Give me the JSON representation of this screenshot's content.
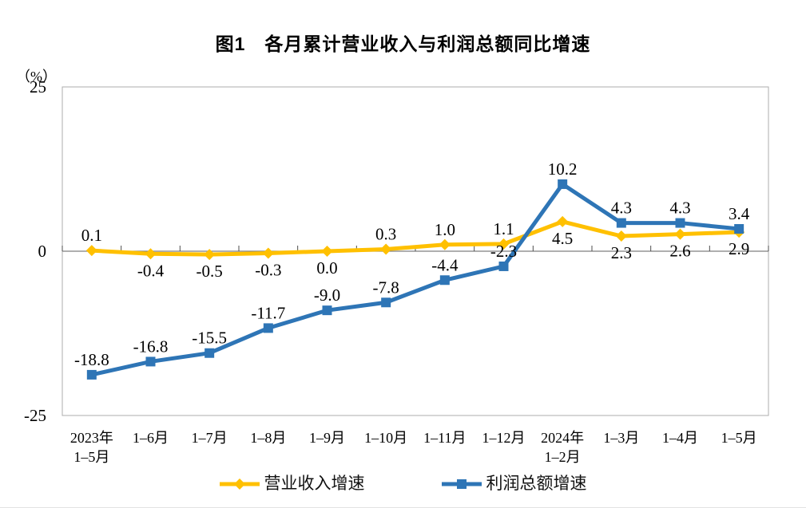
{
  "chart_data": {
    "type": "line",
    "title": "图1　各月累计营业收入与利润总额同比增速",
    "unit_label": "（%）",
    "categories": [
      "2023年\n1–5月",
      "1–6月",
      "1–7月",
      "1–8月",
      "1–9月",
      "1–10月",
      "1–11月",
      "1–12月",
      "2024年\n1–2月",
      "1–3月",
      "1–4月",
      "1–5月"
    ],
    "series": [
      {
        "key": "revenue",
        "name": "营业收入增速",
        "color": "#FFC000",
        "marker": "diamond",
        "values": [
          0.1,
          -0.4,
          -0.5,
          -0.3,
          0.0,
          0.3,
          1.0,
          1.1,
          4.5,
          2.3,
          2.6,
          2.9
        ],
        "label_side": [
          "above",
          "below",
          "below",
          "below",
          "below",
          "above",
          "above",
          "above",
          "below",
          "below",
          "below",
          "below"
        ]
      },
      {
        "key": "profit",
        "name": "利润总额增速",
        "color": "#2E75B6",
        "marker": "square",
        "values": [
          -18.8,
          -16.8,
          -15.5,
          -11.7,
          -9.0,
          -7.8,
          -4.4,
          -2.3,
          10.2,
          4.3,
          4.3,
          3.4
        ],
        "label_side": [
          "above",
          "above",
          "above",
          "above",
          "above",
          "above",
          "above",
          "above",
          "above",
          "above",
          "above",
          "above"
        ]
      }
    ],
    "ylim": [
      -25,
      25
    ],
    "yticks": [
      25,
      0,
      -25
    ],
    "grid": false,
    "legend_position": "bottom",
    "axis_colors": {
      "plot_border": "#ACACAC",
      "zero_line": "#7F7F7F",
      "tick": "#4D4D4D",
      "text": "#000000"
    }
  }
}
